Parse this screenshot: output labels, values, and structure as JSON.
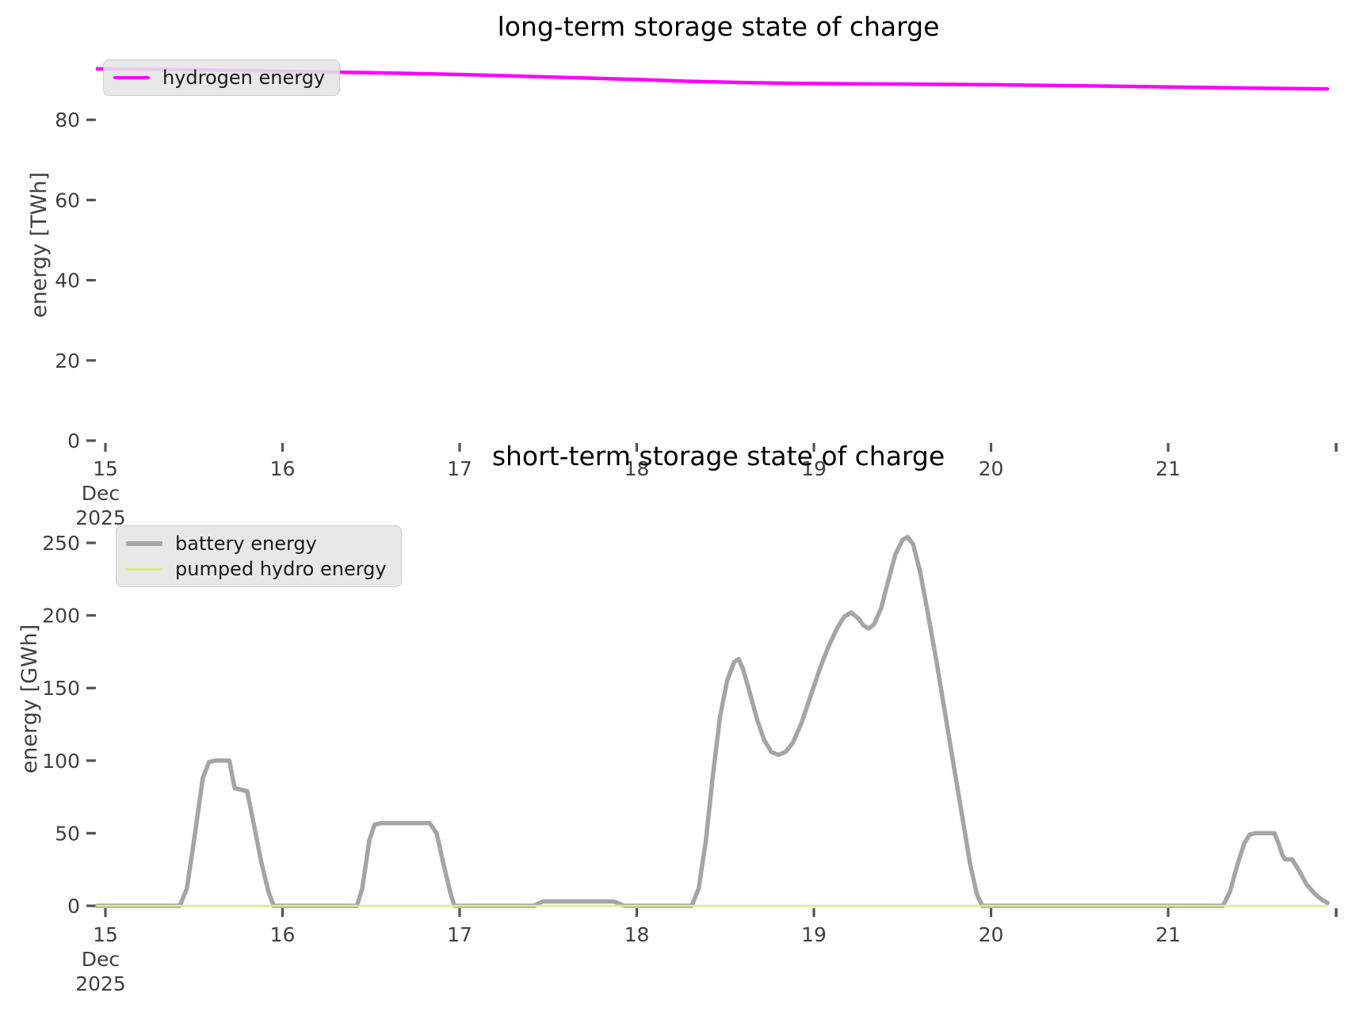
{
  "figure": {
    "background": "#ffffff"
  },
  "chart_data": [
    {
      "type": "line",
      "title": "long-term storage state of charge",
      "ylabel": "energy [TWh]",
      "xlabel": "",
      "grid": false,
      "y_axis": {
        "ticks": [
          0,
          20,
          40,
          60,
          80
        ],
        "tick_labels": [
          "0",
          "20",
          "40",
          "60",
          "80"
        ],
        "range": [
          0,
          97.6
        ]
      },
      "x_axis": {
        "ticks": [
          15,
          16,
          17,
          18,
          19,
          20,
          21
        ],
        "tick_labels": [
          "15",
          "16",
          "17",
          "18",
          "19",
          "20",
          "21"
        ],
        "first_tick_sublabels": [
          "Dec",
          "2025"
        ],
        "range": [
          14.955,
          21.955
        ],
        "edge_tick": 21.955
      },
      "legend": {
        "position": "upper left",
        "entries": [
          {
            "label": "hydrogen energy",
            "color": "#ff00ff"
          }
        ]
      },
      "series": [
        {
          "name": "hydrogen energy",
          "color": "#ff00ff",
          "stroke_width": 4.5,
          "points": [
            [
              14.955,
              92.7
            ],
            [
              15.5,
              92.5
            ],
            [
              16.0,
              92.1
            ],
            [
              16.5,
              91.75
            ],
            [
              17.0,
              91.3
            ],
            [
              17.5,
              90.7
            ],
            [
              18.0,
              90.05
            ],
            [
              18.3,
              89.6
            ],
            [
              18.6,
              89.3
            ],
            [
              18.9,
              89.1
            ],
            [
              19.2,
              89.0
            ],
            [
              19.6,
              88.9
            ],
            [
              20.0,
              88.75
            ],
            [
              20.5,
              88.5
            ],
            [
              21.0,
              88.2
            ],
            [
              21.5,
              87.9
            ],
            [
              21.9,
              87.7
            ]
          ]
        }
      ]
    },
    {
      "type": "line",
      "title": "short-term storage state of charge",
      "ylabel": "energy [GWh]",
      "xlabel": "",
      "grid": false,
      "y_axis": {
        "ticks": [
          0,
          50,
          100,
          150,
          200,
          250
        ],
        "tick_labels": [
          "0",
          "50",
          "100",
          "150",
          "200",
          "250"
        ],
        "range": [
          0,
          285
        ]
      },
      "x_axis": {
        "ticks": [
          15,
          16,
          17,
          18,
          19,
          20,
          21
        ],
        "tick_labels": [
          "15",
          "16",
          "17",
          "18",
          "19",
          "20",
          "21"
        ],
        "first_tick_sublabels": [
          "Dec",
          "2025"
        ],
        "range": [
          14.955,
          21.955
        ],
        "edge_tick": 21.955
      },
      "legend": {
        "position": "upper left",
        "entries": [
          {
            "label": "battery energy",
            "color": "#a5a5a5"
          },
          {
            "label": "pumped hydro energy",
            "color": "#d8f07d"
          }
        ]
      },
      "series": [
        {
          "name": "battery energy",
          "color": "#a5a5a5",
          "stroke_width": 5.5,
          "points": [
            [
              14.955,
              0
            ],
            [
              15.42,
              0
            ],
            [
              15.46,
              12
            ],
            [
              15.5,
              45
            ],
            [
              15.55,
              88
            ],
            [
              15.585,
              99
            ],
            [
              15.62,
              100
            ],
            [
              15.7,
              100
            ],
            [
              15.715,
              90
            ],
            [
              15.73,
              81
            ],
            [
              15.8,
              79
            ],
            [
              15.84,
              55
            ],
            [
              15.88,
              30
            ],
            [
              15.92,
              10
            ],
            [
              15.95,
              0
            ],
            [
              16.42,
              0
            ],
            [
              16.45,
              12
            ],
            [
              16.49,
              45
            ],
            [
              16.52,
              56
            ],
            [
              16.56,
              57
            ],
            [
              16.83,
              57
            ],
            [
              16.87,
              50
            ],
            [
              16.91,
              28
            ],
            [
              16.95,
              8
            ],
            [
              16.97,
              0
            ],
            [
              17.42,
              0
            ],
            [
              17.47,
              3
            ],
            [
              17.87,
              3
            ],
            [
              17.93,
              0
            ],
            [
              18.31,
              0
            ],
            [
              18.35,
              12
            ],
            [
              18.39,
              45
            ],
            [
              18.43,
              90
            ],
            [
              18.47,
              130
            ],
            [
              18.51,
              155
            ],
            [
              18.55,
              168
            ],
            [
              18.575,
              170
            ],
            [
              18.6,
              163
            ],
            [
              18.64,
              146
            ],
            [
              18.68,
              128
            ],
            [
              18.72,
              114
            ],
            [
              18.76,
              106
            ],
            [
              18.8,
              104
            ],
            [
              18.84,
              106
            ],
            [
              18.88,
              112
            ],
            [
              18.93,
              126
            ],
            [
              18.98,
              144
            ],
            [
              19.03,
              162
            ],
            [
              19.08,
              178
            ],
            [
              19.13,
              191
            ],
            [
              19.17,
              199
            ],
            [
              19.21,
              202
            ],
            [
              19.25,
              198
            ],
            [
              19.28,
              193
            ],
            [
              19.31,
              191
            ],
            [
              19.34,
              194
            ],
            [
              19.38,
              205
            ],
            [
              19.42,
              224
            ],
            [
              19.46,
              242
            ],
            [
              19.5,
              252
            ],
            [
              19.53,
              254
            ],
            [
              19.56,
              249
            ],
            [
              19.6,
              230
            ],
            [
              19.64,
              204
            ],
            [
              19.69,
              170
            ],
            [
              19.74,
              133
            ],
            [
              19.79,
              96
            ],
            [
              19.84,
              60
            ],
            [
              19.88,
              30
            ],
            [
              19.92,
              8
            ],
            [
              19.95,
              0
            ],
            [
              21.31,
              0
            ],
            [
              21.35,
              10
            ],
            [
              21.39,
              28
            ],
            [
              21.43,
              43
            ],
            [
              21.46,
              49
            ],
            [
              21.49,
              50
            ],
            [
              21.6,
              50
            ],
            [
              21.62,
              44
            ],
            [
              21.645,
              35
            ],
            [
              21.66,
              32
            ],
            [
              21.7,
              32
            ],
            [
              21.74,
              24
            ],
            [
              21.78,
              15
            ],
            [
              21.83,
              8
            ],
            [
              21.87,
              4
            ],
            [
              21.9,
              2
            ]
          ]
        },
        {
          "name": "pumped hydro energy",
          "color": "#d8f07d",
          "stroke_width": 2.5,
          "points": [
            [
              14.955,
              0
            ],
            [
              21.9,
              0
            ]
          ]
        }
      ]
    }
  ]
}
